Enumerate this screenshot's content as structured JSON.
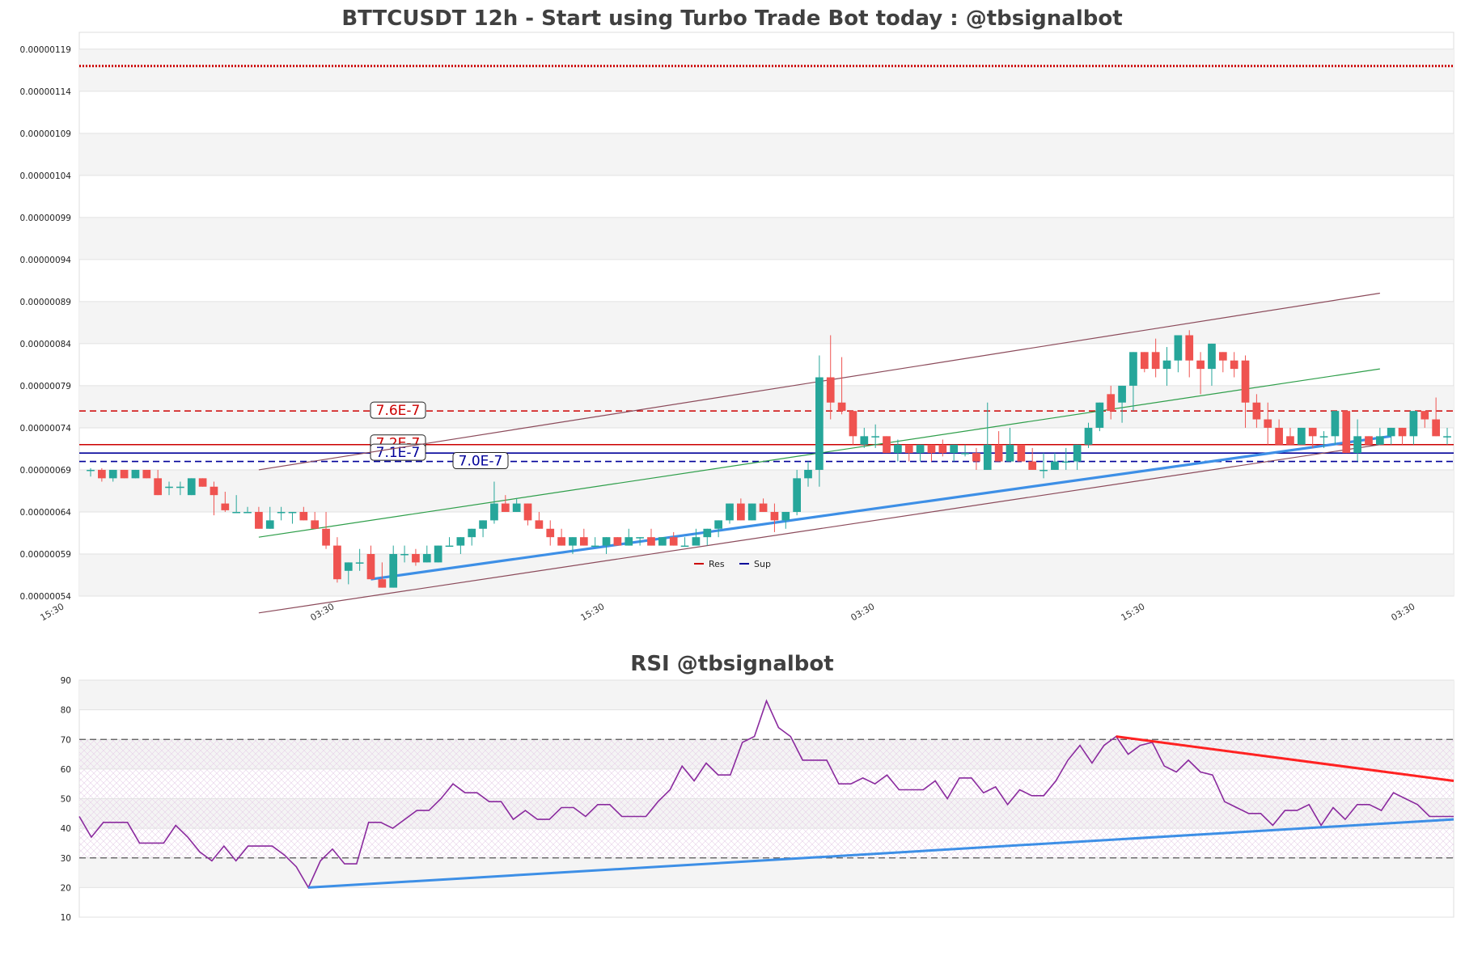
{
  "chart_data": [
    {
      "type": "candlestick",
      "title": "BTTCUSDT 12h - Start using Turbo Trade Bot today : @tbsignalbot",
      "ylim": [
        5.4e-07,
        1.21e-06
      ],
      "y_ticks": [
        "0.00000054",
        "0.00000059",
        "0.00000064",
        "0.00000069",
        "0.00000074",
        "0.00000079",
        "0.00000084",
        "0.00000089",
        "0.00000094",
        "0.00000099",
        "0.00000104",
        "0.00000109",
        "0.00000114",
        "0.00000119"
      ],
      "x_ticks": [
        "15:30",
        "03:30",
        "15:30",
        "03:30",
        "15:30",
        "03:30"
      ],
      "colors": {
        "up": "#26a69a",
        "down": "#ef5350",
        "res": "#cc0000",
        "sup": "#000099"
      },
      "ohlc_e9": [
        [
          690,
          692,
          682,
          690
        ],
        [
          690,
          692,
          676,
          680
        ],
        [
          680,
          690,
          676,
          690
        ],
        [
          690,
          690,
          680,
          680
        ],
        [
          680,
          690,
          680,
          690
        ],
        [
          690,
          690,
          680,
          680
        ],
        [
          680,
          690,
          666,
          660
        ],
        [
          670,
          676,
          660,
          670
        ],
        [
          670,
          676,
          660,
          670
        ],
        [
          660,
          680,
          660,
          680
        ],
        [
          680,
          680,
          670,
          670
        ],
        [
          670,
          676,
          636,
          660
        ],
        [
          650,
          664,
          640,
          642
        ],
        [
          640,
          660,
          640,
          640
        ],
        [
          640,
          646,
          640,
          640
        ],
        [
          640,
          646,
          620,
          620
        ],
        [
          620,
          646,
          620,
          630
        ],
        [
          640,
          646,
          630,
          640
        ],
        [
          640,
          640,
          626,
          640
        ],
        [
          640,
          646,
          630,
          630
        ],
        [
          630,
          640,
          620,
          620
        ],
        [
          620,
          640,
          596,
          600
        ],
        [
          600,
          610,
          556,
          560
        ],
        [
          570,
          580,
          554,
          580
        ],
        [
          580,
          596,
          570,
          580
        ],
        [
          590,
          600,
          560,
          560
        ],
        [
          560,
          580,
          550,
          550
        ],
        [
          550,
          600,
          550,
          590
        ],
        [
          590,
          600,
          580,
          590
        ],
        [
          590,
          596,
          576,
          580
        ],
        [
          580,
          600,
          580,
          590
        ],
        [
          580,
          600,
          580,
          600
        ],
        [
          600,
          610,
          600,
          600
        ],
        [
          600,
          610,
          590,
          610
        ],
        [
          610,
          620,
          600,
          620
        ],
        [
          620,
          630,
          610,
          630
        ],
        [
          630,
          676,
          626,
          650
        ],
        [
          650,
          660,
          640,
          640
        ],
        [
          640,
          656,
          640,
          650
        ],
        [
          650,
          650,
          624,
          630
        ],
        [
          630,
          640,
          620,
          620
        ],
        [
          620,
          630,
          600,
          610
        ],
        [
          610,
          620,
          600,
          600
        ],
        [
          600,
          610,
          590,
          610
        ],
        [
          610,
          620,
          600,
          600
        ],
        [
          600,
          610,
          600,
          600
        ],
        [
          600,
          610,
          590,
          610
        ],
        [
          610,
          610,
          600,
          600
        ],
        [
          600,
          620,
          600,
          610
        ],
        [
          610,
          610,
          600,
          610
        ],
        [
          610,
          620,
          600,
          600
        ],
        [
          600,
          610,
          600,
          610
        ],
        [
          610,
          616,
          600,
          600
        ],
        [
          600,
          610,
          600,
          600
        ],
        [
          600,
          620,
          600,
          610
        ],
        [
          610,
          616,
          600,
          620
        ],
        [
          620,
          626,
          610,
          630
        ],
        [
          630,
          636,
          626,
          650
        ],
        [
          650,
          656,
          630,
          630
        ],
        [
          630,
          650,
          630,
          650
        ],
        [
          650,
          656,
          640,
          640
        ],
        [
          640,
          650,
          616,
          630
        ],
        [
          630,
          640,
          620,
          640
        ],
        [
          640,
          690,
          636,
          680
        ],
        [
          680,
          700,
          670,
          690
        ],
        [
          690,
          826,
          670,
          800
        ],
        [
          800,
          850,
          750,
          770
        ],
        [
          770,
          824,
          756,
          760
        ],
        [
          760,
          750,
          720,
          730
        ],
        [
          720,
          740,
          716,
          730
        ],
        [
          730,
          744,
          716,
          730
        ],
        [
          730,
          726,
          710,
          710
        ],
        [
          710,
          726,
          700,
          720
        ],
        [
          720,
          720,
          700,
          710
        ],
        [
          710,
          720,
          700,
          720
        ],
        [
          720,
          720,
          700,
          710
        ],
        [
          720,
          726,
          706,
          710
        ],
        [
          710,
          720,
          700,
          720
        ],
        [
          710,
          720,
          706,
          710
        ],
        [
          710,
          716,
          690,
          700
        ],
        [
          690,
          770,
          690,
          720
        ],
        [
          720,
          736,
          700,
          700
        ],
        [
          700,
          740,
          700,
          720
        ],
        [
          720,
          720,
          700,
          700
        ],
        [
          700,
          716,
          690,
          690
        ],
        [
          690,
          710,
          680,
          690
        ],
        [
          690,
          710,
          690,
          700
        ],
        [
          700,
          716,
          690,
          700
        ],
        [
          700,
          720,
          690,
          720
        ],
        [
          720,
          746,
          716,
          740
        ],
        [
          740,
          770,
          736,
          770
        ],
        [
          780,
          790,
          750,
          760
        ],
        [
          770,
          786,
          746,
          790
        ],
        [
          790,
          806,
          760,
          830
        ],
        [
          830,
          830,
          806,
          810
        ],
        [
          830,
          846,
          800,
          810
        ],
        [
          810,
          836,
          790,
          820
        ],
        [
          820,
          830,
          806,
          850
        ],
        [
          850,
          856,
          800,
          820
        ],
        [
          820,
          830,
          780,
          810
        ],
        [
          810,
          840,
          790,
          840
        ],
        [
          830,
          830,
          806,
          820
        ],
        [
          820,
          830,
          800,
          810
        ],
        [
          820,
          826,
          740,
          770
        ],
        [
          770,
          780,
          740,
          750
        ],
        [
          750,
          770,
          720,
          740
        ],
        [
          740,
          750,
          720,
          720
        ],
        [
          730,
          740,
          720,
          720
        ],
        [
          720,
          740,
          720,
          740
        ],
        [
          740,
          740,
          716,
          730
        ],
        [
          730,
          736,
          716,
          730
        ],
        [
          730,
          740,
          720,
          760
        ],
        [
          760,
          760,
          710,
          710
        ],
        [
          710,
          750,
          700,
          730
        ],
        [
          730,
          730,
          720,
          720
        ],
        [
          720,
          740,
          720,
          730
        ],
        [
          730,
          730,
          720,
          740
        ],
        [
          740,
          736,
          720,
          730
        ],
        [
          730,
          760,
          720,
          760
        ],
        [
          760,
          760,
          740,
          750
        ],
        [
          750,
          776,
          730,
          730
        ],
        [
          730,
          740,
          720,
          730
        ]
      ],
      "levels": [
        {
          "value": 1.17e-06,
          "style": "dotted-dense",
          "color": "#cc0000"
        },
        {
          "value": 7.6e-07,
          "label": "7.6E-7",
          "style": "dashed",
          "color": "#cc0000"
        },
        {
          "value": 7.2e-07,
          "label": "7.2E-7",
          "style": "solid",
          "color": "#cc0000"
        },
        {
          "value": 7.1e-07,
          "label": "7.1E-7",
          "style": "solid",
          "color": "#000099"
        },
        {
          "value": 7e-07,
          "label": "7.0E-7",
          "style": "dashed",
          "color": "#000099"
        }
      ],
      "trend_lines": [
        {
          "name": "channel-upper",
          "color": "#8b4a5a",
          "from": [
            15,
            6.9e-07
          ],
          "to": [
            115,
            9e-07
          ]
        },
        {
          "name": "channel-mid",
          "color": "#2e9e4a",
          "from": [
            15,
            6.1e-07
          ],
          "to": [
            115,
            8.1e-07
          ]
        },
        {
          "name": "channel-lower",
          "color": "#8b4a5a",
          "from": [
            15,
            5.2e-07
          ],
          "to": [
            115,
            7.2e-07
          ]
        },
        {
          "name": "support-trend",
          "color": "#3d8fe6",
          "from": [
            25,
            5.6e-07
          ],
          "to": [
            116,
            7.3e-07
          ]
        }
      ],
      "legend": [
        {
          "label": "Res",
          "color": "#cc0000"
        },
        {
          "label": "Sup",
          "color": "#000099"
        }
      ]
    },
    {
      "type": "line",
      "title": "RSI @tbsignalbot",
      "ylim": [
        10,
        90
      ],
      "y_ticks": [
        10,
        20,
        30,
        40,
        50,
        60,
        70,
        80,
        90
      ],
      "guides": [
        30,
        70
      ],
      "series": [
        {
          "color": "#8a2a9e",
          "values": [
            44,
            37,
            42,
            42,
            42,
            35,
            35,
            35,
            41,
            37,
            32,
            29,
            34,
            29,
            34,
            34,
            34,
            31,
            27,
            20,
            29,
            33,
            28,
            28,
            42,
            42,
            40,
            43,
            46,
            46,
            50,
            55,
            52,
            52,
            49,
            49,
            43,
            46,
            43,
            43,
            47,
            47,
            44,
            48,
            48,
            44,
            44,
            44,
            49,
            53,
            61,
            56,
            62,
            58,
            58,
            69,
            71,
            83,
            74,
            71,
            63,
            63,
            63,
            55,
            55,
            57,
            55,
            58,
            53,
            53,
            53,
            56,
            50,
            57,
            57,
            52,
            54,
            48,
            53,
            51,
            51,
            56,
            63,
            68,
            62,
            68,
            71,
            65,
            68,
            69,
            61,
            59,
            63,
            59,
            58,
            49,
            47,
            45,
            45,
            41,
            46,
            46,
            48,
            41,
            47,
            43,
            48,
            48,
            46,
            52,
            50,
            48,
            44,
            44,
            44
          ]
        }
      ],
      "trend_lines": [
        {
          "name": "rsi-resistance",
          "color": "#ff2222",
          "from": [
            86,
            71
          ],
          "to": [
            114,
            56
          ]
        },
        {
          "name": "rsi-support",
          "color": "#3d8fe6",
          "from": [
            19,
            20
          ],
          "to": [
            114,
            43
          ]
        }
      ]
    }
  ]
}
